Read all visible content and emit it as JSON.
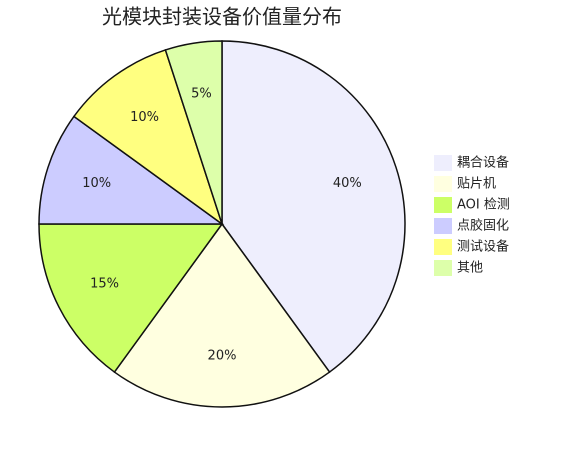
{
  "chart_data": {
    "type": "pie",
    "title": "光模块封装设备价值量分布",
    "categories": [
      "耦合设备",
      "贴片机",
      "AOI 检测",
      "点胶固化",
      "测试设备",
      "其他"
    ],
    "values": [
      40,
      20,
      15,
      10,
      10,
      5
    ],
    "value_labels": [
      "40%",
      "20%",
      "15%",
      "10%",
      "10%",
      "5%"
    ],
    "colors": [
      "#eeeefd",
      "#ffffe0",
      "#ccff66",
      "#ccccff",
      "#ffff80",
      "#ddffaa"
    ],
    "legend": "right"
  }
}
